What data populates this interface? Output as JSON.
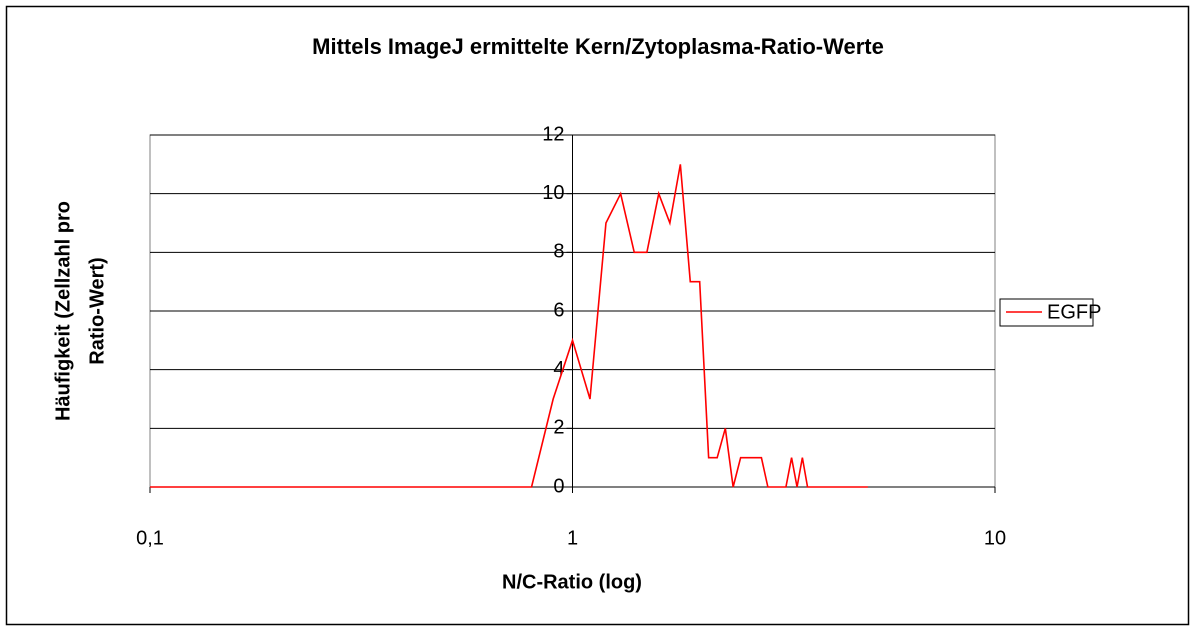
{
  "chart_data": {
    "type": "line",
    "title": "Mittels ImageJ ermittelte Kern/Zytoplasma-Ratio-Werte",
    "xlabel": "N/C-Ratio (log)",
    "ylabel": [
      "Häufigkeit (Zellzahl pro",
      "Ratio-Wert)"
    ],
    "x": [
      0.1,
      0.8,
      0.9,
      1.0,
      1.1,
      1.2,
      1.3,
      1.4,
      1.5,
      1.6,
      1.7,
      1.8,
      1.9,
      2.0,
      2.1,
      2.2,
      2.3,
      2.4,
      2.5,
      2.6,
      2.7,
      2.8,
      2.9,
      3.0,
      3.1,
      3.2,
      3.3,
      3.4,
      3.5,
      3.6,
      5.0
    ],
    "series": [
      {
        "name": "EGFP",
        "color": "#ff0000",
        "values": [
          0,
          0,
          3,
          5,
          3,
          9,
          10,
          8,
          8,
          10,
          9,
          11,
          7,
          7,
          1,
          1,
          2,
          0,
          1,
          1,
          1,
          1,
          0,
          0,
          0,
          0,
          1,
          0,
          1,
          0,
          0
        ]
      }
    ],
    "xscale": "log",
    "xlim": [
      0.1,
      10
    ],
    "xticks": [
      {
        "value": 0.1,
        "label": "0,1"
      },
      1,
      10
    ],
    "ylim": [
      0,
      12
    ],
    "yticks": [
      0,
      2,
      4,
      6,
      8,
      10,
      12
    ],
    "grid": true,
    "legend": "right"
  }
}
